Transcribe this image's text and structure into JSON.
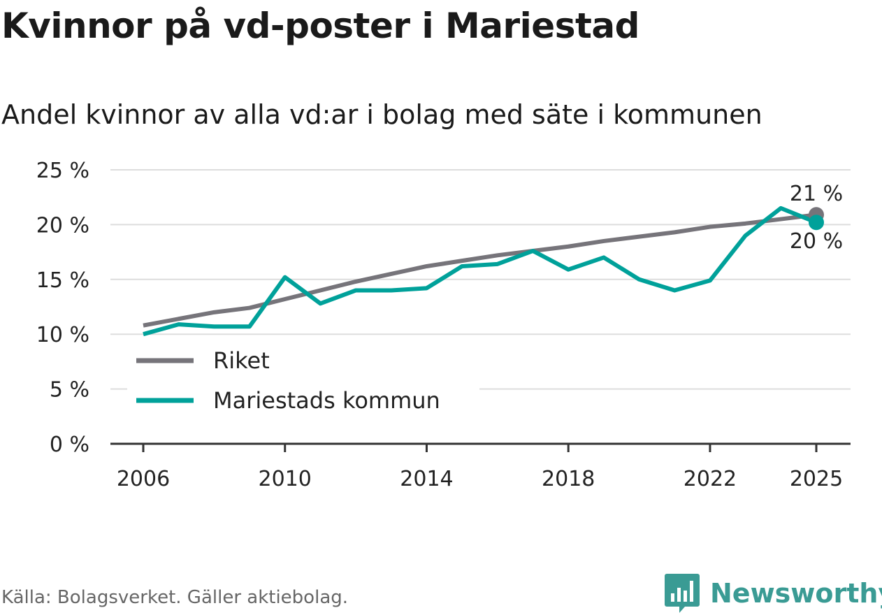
{
  "title": "Kvinnor på vd-poster i Mariestad",
  "subtitle": "Andel kvinnor av alla vd:ar i bolag med säte i kommunen",
  "source": "Källa: Bolagsverket. Gäller aktiebolag.",
  "brand": "Newsworthy",
  "colors": {
    "riket": "#76747a",
    "mariestad": "#00a19a",
    "grid": "#dddddd",
    "axis": "#333333"
  },
  "chart_data": {
    "type": "line",
    "x": [
      2006,
      2007,
      2008,
      2009,
      2010,
      2011,
      2012,
      2013,
      2014,
      2015,
      2016,
      2017,
      2018,
      2019,
      2020,
      2021,
      2022,
      2023,
      2024,
      2025
    ],
    "series": [
      {
        "name": "Riket",
        "values": [
          10.8,
          11.4,
          12.0,
          12.4,
          13.2,
          14.0,
          14.8,
          15.5,
          16.2,
          16.7,
          17.2,
          17.6,
          18.0,
          18.5,
          18.9,
          19.3,
          19.8,
          20.1,
          20.5,
          20.9
        ],
        "end_label": "21 %"
      },
      {
        "name": "Mariestads kommun",
        "values": [
          10.0,
          10.9,
          10.7,
          10.7,
          15.2,
          12.8,
          14.0,
          14.0,
          14.2,
          16.2,
          16.4,
          17.6,
          15.9,
          17.0,
          15.0,
          14.0,
          14.9,
          19.0,
          21.5,
          20.2
        ],
        "end_label": "20 %"
      }
    ],
    "ylim": [
      0,
      25
    ],
    "y_ticks": [
      0,
      5,
      10,
      15,
      20,
      25
    ],
    "y_tick_labels": [
      "0 %",
      "5 %",
      "10 %",
      "15 %",
      "20 %",
      "25 %"
    ],
    "x_ticks": [
      2006,
      2010,
      2014,
      2018,
      2022,
      2025
    ],
    "x_tick_labels": [
      "2006",
      "2010",
      "2014",
      "2018",
      "2022",
      "2025"
    ],
    "legend": [
      "Riket",
      "Mariestads kommun"
    ],
    "legend_position": "bottom-left",
    "grid": true,
    "xlabel": "",
    "ylabel": ""
  }
}
